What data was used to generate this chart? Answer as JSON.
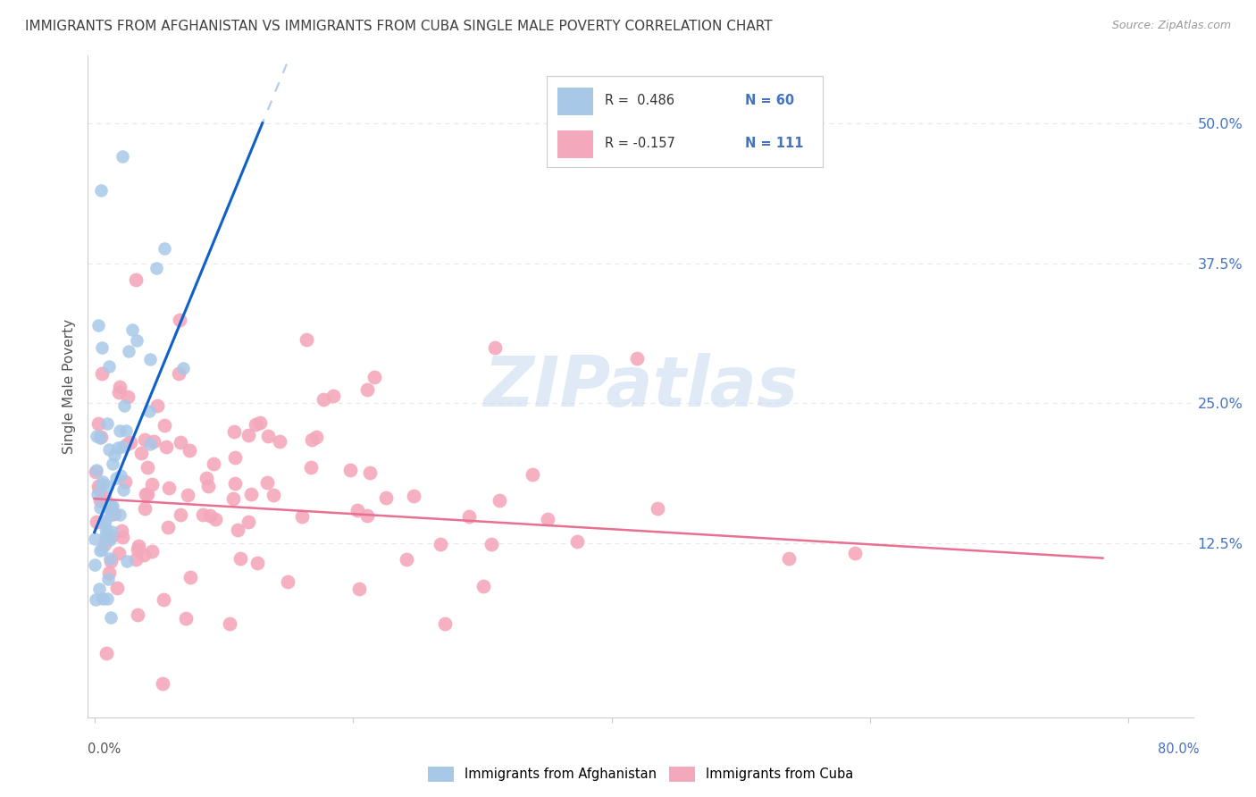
{
  "title": "IMMIGRANTS FROM AFGHANISTAN VS IMMIGRANTS FROM CUBA SINGLE MALE POVERTY CORRELATION CHART",
  "source": "Source: ZipAtlas.com",
  "ylabel": "Single Male Poverty",
  "ytick_labels": [
    "50.0%",
    "37.5%",
    "25.0%",
    "12.5%"
  ],
  "ytick_values": [
    0.5,
    0.375,
    0.25,
    0.125
  ],
  "ylim": [
    -0.03,
    0.56
  ],
  "xlim": [
    -0.005,
    0.85
  ],
  "afghanistan_R": 0.486,
  "afghanistan_N": 60,
  "cuba_R": -0.157,
  "cuba_N": 111,
  "afghanistan_color": "#a8c8e8",
  "cuba_color": "#f4a8bc",
  "afghanistan_line_color": "#1060c8",
  "cuba_line_color": "#e87090",
  "trend_dashed_color": "#b8cce4",
  "legend_text_color": "#4472c4",
  "title_color": "#404040",
  "source_color": "#999999",
  "background_color": "#ffffff",
  "watermark_color": "#ccdcf0",
  "grid_color": "#e8e8e8",
  "seed": 7
}
